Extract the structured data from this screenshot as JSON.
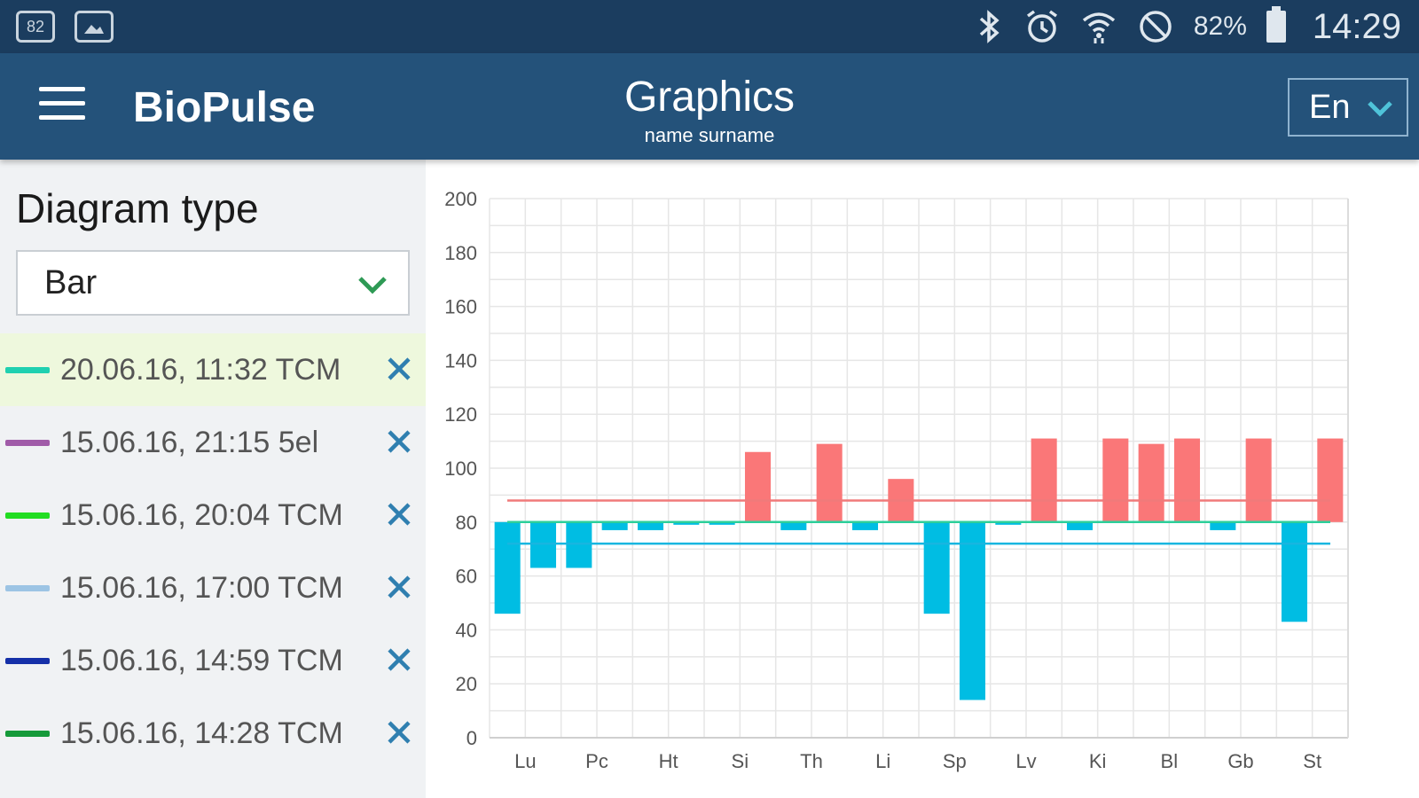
{
  "status_bar": {
    "left_icons": [
      "notification-count-icon",
      "image-icon"
    ],
    "notification_text": "82",
    "right_icons": [
      "bluetooth-icon",
      "alarm-icon",
      "wifi-icon",
      "do-not-disturb-icon"
    ],
    "battery": "82%",
    "time": "14:29"
  },
  "app_bar": {
    "app_name": "BioPulse",
    "title": "Graphics",
    "subtitle": "name surname",
    "language": "En"
  },
  "sidebar": {
    "heading": "Diagram type",
    "diagram_type": "Bar",
    "measurements": [
      {
        "label": "20.06.16, 11:32 TCM",
        "color": "#1fd0b0",
        "active": true
      },
      {
        "label": "15.06.16, 21:15 5el",
        "color": "#a05ba8",
        "active": false
      },
      {
        "label": "15.06.16, 20:04 TCM",
        "color": "#22dd22",
        "active": false
      },
      {
        "label": "15.06.16, 17:00 TCM",
        "color": "#9cc4e4",
        "active": false
      },
      {
        "label": "15.06.16, 14:59 TCM",
        "color": "#1530a8",
        "active": false
      },
      {
        "label": "15.06.16, 14:28 TCM",
        "color": "#159a3a",
        "active": false
      }
    ],
    "remove_icon": "close-icon",
    "remove_color": "#2f7fb0"
  },
  "chart_data": {
    "type": "bar",
    "baseline": 80,
    "ylim": [
      0,
      200
    ],
    "yticks": [
      0,
      20,
      40,
      60,
      80,
      100,
      120,
      140,
      160,
      180,
      200
    ],
    "categories": [
      "Lu",
      "Pc",
      "Ht",
      "Si",
      "Th",
      "Li",
      "Sp",
      "Lv",
      "Ki",
      "Bl",
      "Gb",
      "St"
    ],
    "bars": [
      46,
      63,
      63,
      77,
      77,
      79,
      79,
      106,
      77,
      109,
      77,
      96,
      46,
      14,
      79,
      111,
      77,
      111,
      109,
      111,
      77,
      111,
      43,
      111
    ],
    "reference_lines": [
      {
        "value": 88,
        "color": "#f07a7a"
      },
      {
        "value": 80,
        "color": "#2ccf9a"
      },
      {
        "value": 72,
        "color": "#18b6e0"
      }
    ],
    "colors": {
      "above": "#fa7778",
      "below": "#00bde3",
      "grid": "#e6e6e6"
    },
    "grid": true
  }
}
